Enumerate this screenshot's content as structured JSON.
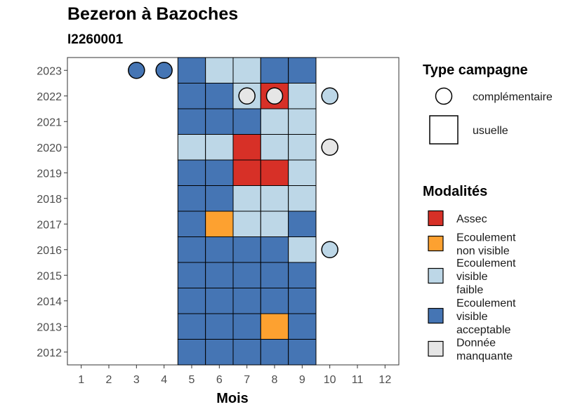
{
  "title": "Bezeron à Bazoches",
  "subtitle": "I2260001",
  "colors": {
    "assec": "#D73027",
    "ecoulement_non_visible": "#FDA130",
    "ecoulement_visible_faible": "#BDD7E7",
    "ecoulement_visible_acceptable": "#4575B4",
    "donnee_manquante": "#E6E6E6"
  },
  "chart_data": {
    "type": "heatmap",
    "xlabel": "Mois",
    "ylabel": "",
    "x_categories": [
      "1",
      "2",
      "3",
      "4",
      "5",
      "6",
      "7",
      "8",
      "9",
      "10",
      "11",
      "12"
    ],
    "y_categories": [
      "2012",
      "2013",
      "2014",
      "2015",
      "2016",
      "2017",
      "2018",
      "2019",
      "2020",
      "2021",
      "2022",
      "2023"
    ],
    "legend_campaign": {
      "title": "Type campagne",
      "items": [
        {
          "key": "complementaire",
          "label": "complémentaire",
          "shape": "circle"
        },
        {
          "key": "usuelle",
          "label": "usuelle",
          "shape": "square"
        }
      ]
    },
    "legend_modalites": {
      "title": "Modalités",
      "items": [
        {
          "key": "assec",
          "label_lines": [
            "Assec"
          ]
        },
        {
          "key": "ecoulement_non_visible",
          "label_lines": [
            "Ecoulement",
            "non visible"
          ]
        },
        {
          "key": "ecoulement_visible_faible",
          "label_lines": [
            "Ecoulement",
            "visible",
            "faible"
          ]
        },
        {
          "key": "ecoulement_visible_acceptable",
          "label_lines": [
            "Ecoulement",
            "visible",
            "acceptable"
          ]
        },
        {
          "key": "donnee_manquante",
          "label_lines": [
            "Donnée",
            "manquante"
          ]
        }
      ]
    },
    "cells": [
      {
        "year": 2012,
        "month": 5,
        "value": "ecoulement_visible_acceptable",
        "campaign": "usuelle"
      },
      {
        "year": 2012,
        "month": 6,
        "value": "ecoulement_visible_acceptable",
        "campaign": "usuelle"
      },
      {
        "year": 2012,
        "month": 7,
        "value": "ecoulement_visible_acceptable",
        "campaign": "usuelle"
      },
      {
        "year": 2012,
        "month": 8,
        "value": "ecoulement_visible_acceptable",
        "campaign": "usuelle"
      },
      {
        "year": 2012,
        "month": 9,
        "value": "ecoulement_visible_acceptable",
        "campaign": "usuelle"
      },
      {
        "year": 2013,
        "month": 5,
        "value": "ecoulement_visible_acceptable",
        "campaign": "usuelle"
      },
      {
        "year": 2013,
        "month": 6,
        "value": "ecoulement_visible_acceptable",
        "campaign": "usuelle"
      },
      {
        "year": 2013,
        "month": 7,
        "value": "ecoulement_visible_acceptable",
        "campaign": "usuelle"
      },
      {
        "year": 2013,
        "month": 8,
        "value": "ecoulement_non_visible",
        "campaign": "usuelle"
      },
      {
        "year": 2013,
        "month": 9,
        "value": "ecoulement_visible_acceptable",
        "campaign": "usuelle"
      },
      {
        "year": 2014,
        "month": 5,
        "value": "ecoulement_visible_acceptable",
        "campaign": "usuelle"
      },
      {
        "year": 2014,
        "month": 6,
        "value": "ecoulement_visible_acceptable",
        "campaign": "usuelle"
      },
      {
        "year": 2014,
        "month": 7,
        "value": "ecoulement_visible_acceptable",
        "campaign": "usuelle"
      },
      {
        "year": 2014,
        "month": 8,
        "value": "ecoulement_visible_acceptable",
        "campaign": "usuelle"
      },
      {
        "year": 2014,
        "month": 9,
        "value": "ecoulement_visible_acceptable",
        "campaign": "usuelle"
      },
      {
        "year": 2015,
        "month": 5,
        "value": "ecoulement_visible_acceptable",
        "campaign": "usuelle"
      },
      {
        "year": 2015,
        "month": 6,
        "value": "ecoulement_visible_acceptable",
        "campaign": "usuelle"
      },
      {
        "year": 2015,
        "month": 7,
        "value": "ecoulement_visible_acceptable",
        "campaign": "usuelle"
      },
      {
        "year": 2015,
        "month": 8,
        "value": "ecoulement_visible_acceptable",
        "campaign": "usuelle"
      },
      {
        "year": 2015,
        "month": 9,
        "value": "ecoulement_visible_acceptable",
        "campaign": "usuelle"
      },
      {
        "year": 2016,
        "month": 5,
        "value": "ecoulement_visible_acceptable",
        "campaign": "usuelle"
      },
      {
        "year": 2016,
        "month": 6,
        "value": "ecoulement_visible_acceptable",
        "campaign": "usuelle"
      },
      {
        "year": 2016,
        "month": 7,
        "value": "ecoulement_visible_acceptable",
        "campaign": "usuelle"
      },
      {
        "year": 2016,
        "month": 8,
        "value": "ecoulement_visible_acceptable",
        "campaign": "usuelle"
      },
      {
        "year": 2016,
        "month": 9,
        "value": "ecoulement_visible_faible",
        "campaign": "usuelle"
      },
      {
        "year": 2016,
        "month": 10,
        "value": "ecoulement_visible_faible",
        "campaign": "complementaire"
      },
      {
        "year": 2017,
        "month": 5,
        "value": "ecoulement_visible_acceptable",
        "campaign": "usuelle"
      },
      {
        "year": 2017,
        "month": 6,
        "value": "ecoulement_non_visible",
        "campaign": "usuelle"
      },
      {
        "year": 2017,
        "month": 7,
        "value": "ecoulement_visible_faible",
        "campaign": "usuelle"
      },
      {
        "year": 2017,
        "month": 8,
        "value": "ecoulement_visible_faible",
        "campaign": "usuelle"
      },
      {
        "year": 2017,
        "month": 9,
        "value": "ecoulement_visible_acceptable",
        "campaign": "usuelle"
      },
      {
        "year": 2018,
        "month": 5,
        "value": "ecoulement_visible_acceptable",
        "campaign": "usuelle"
      },
      {
        "year": 2018,
        "month": 6,
        "value": "ecoulement_visible_acceptable",
        "campaign": "usuelle"
      },
      {
        "year": 2018,
        "month": 7,
        "value": "ecoulement_visible_faible",
        "campaign": "usuelle"
      },
      {
        "year": 2018,
        "month": 8,
        "value": "ecoulement_visible_faible",
        "campaign": "usuelle"
      },
      {
        "year": 2018,
        "month": 9,
        "value": "ecoulement_visible_faible",
        "campaign": "usuelle"
      },
      {
        "year": 2019,
        "month": 5,
        "value": "ecoulement_visible_acceptable",
        "campaign": "usuelle"
      },
      {
        "year": 2019,
        "month": 6,
        "value": "ecoulement_visible_acceptable",
        "campaign": "usuelle"
      },
      {
        "year": 2019,
        "month": 7,
        "value": "assec",
        "campaign": "usuelle"
      },
      {
        "year": 2019,
        "month": 8,
        "value": "assec",
        "campaign": "usuelle"
      },
      {
        "year": 2019,
        "month": 9,
        "value": "ecoulement_visible_faible",
        "campaign": "usuelle"
      },
      {
        "year": 2020,
        "month": 5,
        "value": "ecoulement_visible_faible",
        "campaign": "usuelle"
      },
      {
        "year": 2020,
        "month": 6,
        "value": "ecoulement_visible_faible",
        "campaign": "usuelle"
      },
      {
        "year": 2020,
        "month": 7,
        "value": "assec",
        "campaign": "usuelle"
      },
      {
        "year": 2020,
        "month": 8,
        "value": "ecoulement_visible_faible",
        "campaign": "usuelle"
      },
      {
        "year": 2020,
        "month": 9,
        "value": "ecoulement_visible_faible",
        "campaign": "usuelle"
      },
      {
        "year": 2020,
        "month": 10,
        "value": "donnee_manquante",
        "campaign": "complementaire"
      },
      {
        "year": 2021,
        "month": 5,
        "value": "ecoulement_visible_acceptable",
        "campaign": "usuelle"
      },
      {
        "year": 2021,
        "month": 6,
        "value": "ecoulement_visible_acceptable",
        "campaign": "usuelle"
      },
      {
        "year": 2021,
        "month": 7,
        "value": "ecoulement_visible_acceptable",
        "campaign": "usuelle"
      },
      {
        "year": 2021,
        "month": 8,
        "value": "ecoulement_visible_faible",
        "campaign": "usuelle"
      },
      {
        "year": 2021,
        "month": 9,
        "value": "ecoulement_visible_faible",
        "campaign": "usuelle"
      },
      {
        "year": 2022,
        "month": 5,
        "value": "ecoulement_visible_acceptable",
        "campaign": "usuelle"
      },
      {
        "year": 2022,
        "month": 6,
        "value": "ecoulement_visible_acceptable",
        "campaign": "usuelle"
      },
      {
        "year": 2022,
        "month": 7,
        "value": "ecoulement_visible_faible",
        "campaign": "usuelle"
      },
      {
        "year": 2022,
        "month": 7,
        "value": "donnee_manquante",
        "campaign": "complementaire"
      },
      {
        "year": 2022,
        "month": 8,
        "value": "assec",
        "campaign": "usuelle"
      },
      {
        "year": 2022,
        "month": 8,
        "value": "donnee_manquante",
        "campaign": "complementaire"
      },
      {
        "year": 2022,
        "month": 9,
        "value": "ecoulement_visible_faible",
        "campaign": "usuelle"
      },
      {
        "year": 2022,
        "month": 10,
        "value": "ecoulement_visible_faible",
        "campaign": "complementaire"
      },
      {
        "year": 2023,
        "month": 3,
        "value": "ecoulement_visible_acceptable",
        "campaign": "complementaire"
      },
      {
        "year": 2023,
        "month": 4,
        "value": "ecoulement_visible_acceptable",
        "campaign": "complementaire"
      },
      {
        "year": 2023,
        "month": 5,
        "value": "ecoulement_visible_acceptable",
        "campaign": "usuelle"
      },
      {
        "year": 2023,
        "month": 6,
        "value": "ecoulement_visible_faible",
        "campaign": "usuelle"
      },
      {
        "year": 2023,
        "month": 7,
        "value": "ecoulement_visible_faible",
        "campaign": "usuelle"
      },
      {
        "year": 2023,
        "month": 8,
        "value": "ecoulement_visible_acceptable",
        "campaign": "usuelle"
      },
      {
        "year": 2023,
        "month": 9,
        "value": "ecoulement_visible_acceptable",
        "campaign": "usuelle"
      }
    ]
  }
}
